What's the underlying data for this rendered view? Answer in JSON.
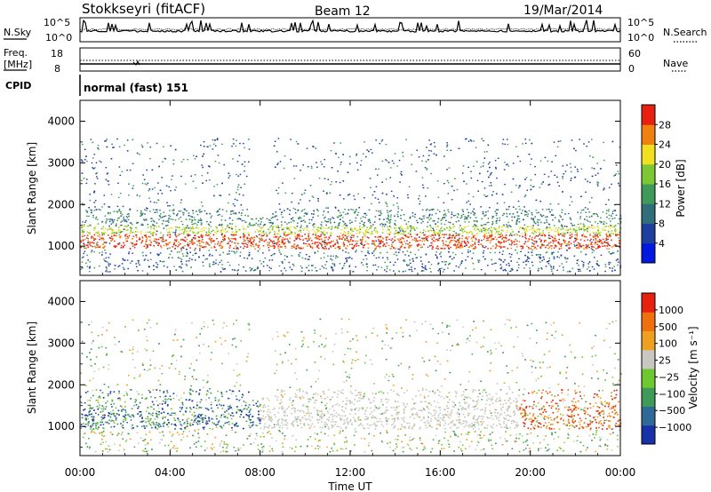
{
  "header": {
    "station": "Stokkseyri (fitACF)",
    "beam": "Beam 12",
    "date": "19/Mar/2014"
  },
  "strips": {
    "nsky_label": "N.Sky",
    "nsky_ticks": [
      "10^5",
      "10^0"
    ],
    "nsearch_label": "N.Search",
    "nsearch_ticks": [
      "10^5",
      "10^0"
    ],
    "freq_label": "Freq.",
    "freq_unit": "[MHz]",
    "freq_ticks": [
      "18",
      "8"
    ],
    "nave_label": "Nave",
    "nave_ticks": [
      "60",
      "0"
    ],
    "cpid_label": "CPID",
    "cpid_value": "normal (fast) 151"
  },
  "chart_data": [
    {
      "type": "heatmap",
      "name": "power",
      "ylabel": "Slant Range [km]",
      "yticks": [
        "4000",
        "3000",
        "2000",
        "1000"
      ],
      "ylim": [
        300,
        4500
      ],
      "colorbar_label": "Power [dB]",
      "colorbar_ticks": [
        "28",
        "24",
        "20",
        "16",
        "12",
        "8",
        "4"
      ],
      "colors": [
        "#0018e0",
        "#1f3f9e",
        "#2f6e7a",
        "#3f9a5a",
        "#7dc832",
        "#f0e020",
        "#f08010",
        "#e82010"
      ]
    },
    {
      "type": "heatmap",
      "name": "velocity",
      "ylabel": "Slant Range [km]",
      "yticks": [
        "4000",
        "3000",
        "2000",
        "1000"
      ],
      "ylim": [
        300,
        4500
      ],
      "colorbar_label": "Velocity [m s⁻¹]",
      "colorbar_ticks": [
        "1000",
        "500",
        "100",
        "25",
        "−25",
        "−100",
        "−500",
        "−1000"
      ],
      "colors": [
        "#1830a8",
        "#2f6a96",
        "#3f9a5a",
        "#6ec830",
        "#c8c8c0",
        "#f0a020",
        "#f07010",
        "#e82010"
      ]
    }
  ],
  "xaxis": {
    "label": "Time UT",
    "ticks": [
      "00:00",
      "04:00",
      "08:00",
      "12:00",
      "16:00",
      "20:00",
      "00:00"
    ]
  }
}
